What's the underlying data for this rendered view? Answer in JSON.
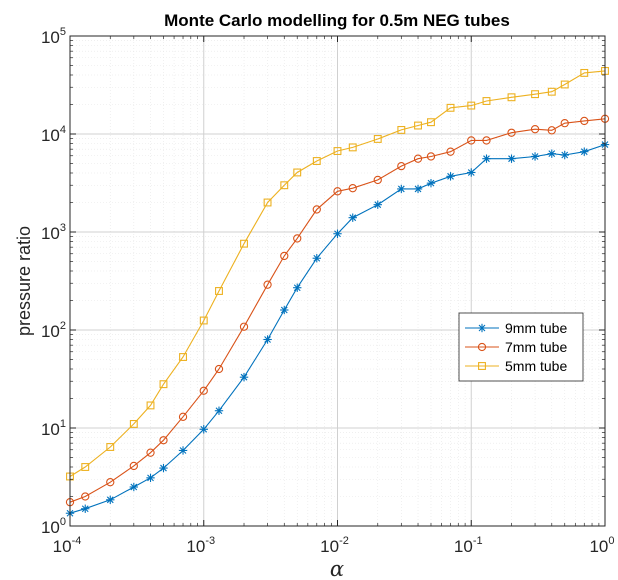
{
  "chart_data": {
    "type": "line",
    "title": "Monte Carlo modelling for 0.5m NEG tubes",
    "xlabel": "α",
    "ylabel": "pressure ratio",
    "xscale": "log",
    "yscale": "log",
    "xlim": [
      0.0001,
      1
    ],
    "ylim": [
      1,
      100000
    ],
    "grid": true,
    "minor_grid": true,
    "legend_position": "center-right",
    "x_ticks": [
      {
        "base": "10",
        "exp": "-4"
      },
      {
        "base": "10",
        "exp": "-3"
      },
      {
        "base": "10",
        "exp": "-2"
      },
      {
        "base": "10",
        "exp": "-1"
      },
      {
        "base": "10",
        "exp": "0"
      }
    ],
    "y_ticks": [
      {
        "base": "10",
        "exp": "0"
      },
      {
        "base": "10",
        "exp": "1"
      },
      {
        "base": "10",
        "exp": "2"
      },
      {
        "base": "10",
        "exp": "3"
      },
      {
        "base": "10",
        "exp": "4"
      },
      {
        "base": "10",
        "exp": "5"
      }
    ],
    "x": [
      0.0001,
      0.00013,
      0.0002,
      0.0003,
      0.0004,
      0.0005,
      0.0007,
      0.001,
      0.0013,
      0.002,
      0.003,
      0.004,
      0.005,
      0.007,
      0.01,
      0.013,
      0.02,
      0.03,
      0.04,
      0.05,
      0.07,
      0.1,
      0.13,
      0.2,
      0.3,
      0.4,
      0.5,
      0.7,
      1
    ],
    "series": [
      {
        "name": "9mm tube",
        "color": "#0072BD",
        "marker": "asterisk",
        "values": [
          1.35,
          1.5,
          1.85,
          2.5,
          3.1,
          3.9,
          5.9,
          9.7,
          15,
          33,
          80,
          160,
          270,
          540,
          960,
          1400,
          1900,
          2750,
          2750,
          3150,
          3700,
          4050,
          5600,
          5600,
          5900,
          6300,
          6100,
          6600,
          7800
        ]
      },
      {
        "name": "7mm tube",
        "color": "#D95319",
        "marker": "circle",
        "values": [
          1.75,
          2.0,
          2.8,
          4.1,
          5.6,
          7.5,
          13,
          24,
          40,
          108,
          290,
          570,
          860,
          1700,
          2600,
          2800,
          3400,
          4700,
          5600,
          5900,
          6600,
          8600,
          8600,
          10300,
          11200,
          10900,
          12900,
          13600,
          14300
        ]
      },
      {
        "name": "5mm tube",
        "color": "#EDB120",
        "marker": "square",
        "values": [
          3.2,
          4.0,
          6.4,
          11,
          17,
          28,
          53,
          125,
          250,
          760,
          2000,
          3000,
          4050,
          5300,
          6700,
          7300,
          8900,
          11000,
          12200,
          13200,
          18500,
          19500,
          21700,
          23700,
          25500,
          27000,
          32000,
          42000,
          44000
        ]
      }
    ]
  }
}
